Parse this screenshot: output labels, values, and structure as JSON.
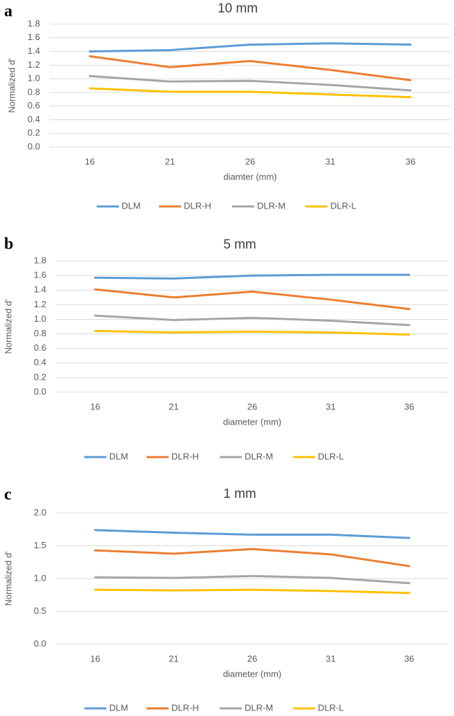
{
  "chart_data": [
    {
      "type": "line",
      "panel_label": "a",
      "title": "10 mm",
      "x_label": "diamter (mm)",
      "y_label": "Normalized d'",
      "categories": [
        "16",
        "21",
        "26",
        "31",
        "36"
      ],
      "ylim": [
        0,
        1.8
      ],
      "yticks": [
        {
          "value": 0,
          "label": "0.0"
        },
        0.2,
        0.4,
        0.6,
        0.8,
        {
          "value": 1,
          "label": "1.0"
        },
        1.2,
        1.4,
        1.6,
        1.8
      ],
      "grid": true,
      "legend": "bottom",
      "series": [
        {
          "name": "DLM",
          "color": "#5b9bd5",
          "values": [
            1.4,
            1.42,
            1.5,
            1.52,
            1.5
          ]
        },
        {
          "name": "DLR-H",
          "color": "#ed7d31",
          "values": [
            1.33,
            1.17,
            1.26,
            1.13,
            0.98
          ]
        },
        {
          "name": "DLR-M",
          "color": "#a5a5a5",
          "values": [
            1.04,
            0.96,
            0.97,
            0.91,
            0.83
          ]
        },
        {
          "name": "DLR-L",
          "color": "#ffc000",
          "values": [
            0.86,
            0.81,
            0.81,
            0.77,
            0.73
          ]
        }
      ]
    },
    {
      "type": "line",
      "panel_label": "b",
      "title": "5 mm",
      "x_label": "diameter (mm)",
      "y_label": "Normalized d'",
      "categories": [
        "16",
        "21",
        "26",
        "31",
        "36"
      ],
      "ylim": [
        0,
        1.8
      ],
      "yticks": [
        {
          "value": 0,
          "label": "0.0"
        },
        0.2,
        0.4,
        0.6,
        0.8,
        {
          "value": 1,
          "label": "1.0"
        },
        1.2,
        1.4,
        1.6,
        1.8
      ],
      "grid": true,
      "legend": "bottom",
      "series": [
        {
          "name": "DLM",
          "color": "#5b9bd5",
          "values": [
            1.57,
            1.56,
            1.6,
            1.61,
            1.61
          ]
        },
        {
          "name": "DLR-H",
          "color": "#ed7d31",
          "values": [
            1.41,
            1.3,
            1.38,
            1.27,
            1.14
          ]
        },
        {
          "name": "DLR-M",
          "color": "#a5a5a5",
          "values": [
            1.05,
            0.99,
            1.02,
            0.98,
            0.92
          ]
        },
        {
          "name": "DLR-L",
          "color": "#ffc000",
          "values": [
            0.84,
            0.82,
            0.83,
            0.82,
            0.79
          ]
        }
      ]
    },
    {
      "type": "line",
      "panel_label": "c",
      "title": "1 mm",
      "x_label": "diameter (mm)",
      "y_label": "Normalized d'",
      "categories": [
        "16",
        "21",
        "26",
        "31",
        "36"
      ],
      "ylim": [
        0,
        2
      ],
      "yticks": [
        {
          "value": 0,
          "label": "0.0"
        },
        0.5,
        {
          "value": 1,
          "label": "1.0"
        },
        1.5,
        {
          "value": 2,
          "label": "2.0"
        }
      ],
      "grid": true,
      "legend": "bottom",
      "series": [
        {
          "name": "DLM",
          "color": "#5b9bd5",
          "values": [
            1.74,
            1.7,
            1.67,
            1.67,
            1.62
          ]
        },
        {
          "name": "DLR-H",
          "color": "#ed7d31",
          "values": [
            1.43,
            1.38,
            1.45,
            1.37,
            1.19
          ]
        },
        {
          "name": "DLR-M",
          "color": "#a5a5a5",
          "values": [
            1.02,
            1.01,
            1.04,
            1.01,
            0.93
          ]
        },
        {
          "name": "DLR-L",
          "color": "#ffc000",
          "values": [
            0.83,
            0.82,
            0.83,
            0.81,
            0.78
          ]
        }
      ]
    }
  ]
}
